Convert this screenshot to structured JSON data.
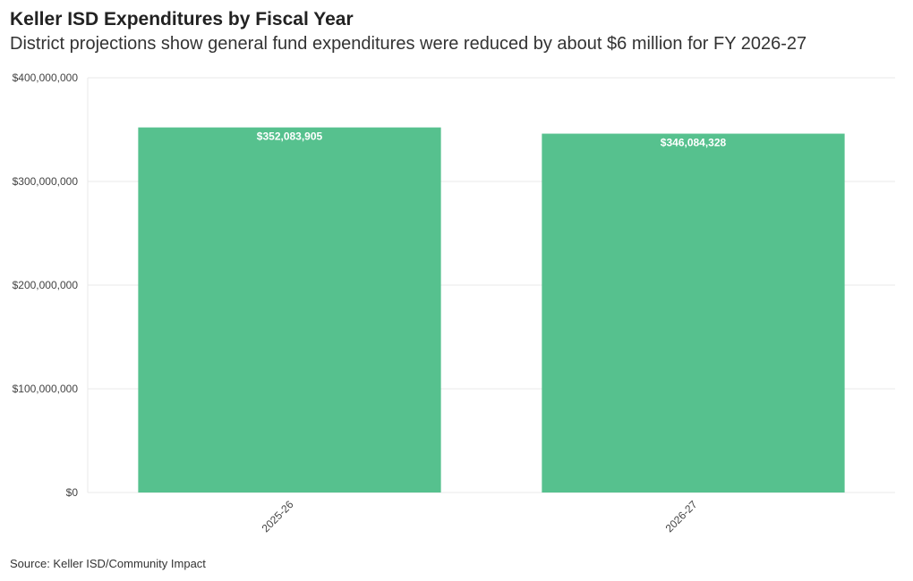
{
  "title": "Keller ISD Expenditures by Fiscal Year",
  "subtitle": "District projections show general fund expenditures were reduced by about $6 million for FY 2026-27",
  "source": "Source: Keller ISD/Community Impact",
  "colors": {
    "bar": "#56c18e",
    "grid": "#e8e8e8",
    "axis_text": "#444444",
    "bar_label": "#ffffff"
  },
  "chart_data": {
    "type": "bar",
    "categories": [
      "2025-26",
      "2026-27"
    ],
    "values": [
      352083905,
      346084328
    ],
    "value_labels": [
      "$352,083,905",
      "$346,084,328"
    ],
    "ylim": [
      0,
      400000000
    ],
    "yticks": [
      0,
      100000000,
      200000000,
      300000000,
      400000000
    ],
    "ytick_labels": [
      "$0",
      "$100,000,000",
      "$200,000,000",
      "$300,000,000",
      "$400,000,000"
    ],
    "xlabel": "",
    "ylabel": "",
    "grid": true,
    "legend": "none"
  }
}
